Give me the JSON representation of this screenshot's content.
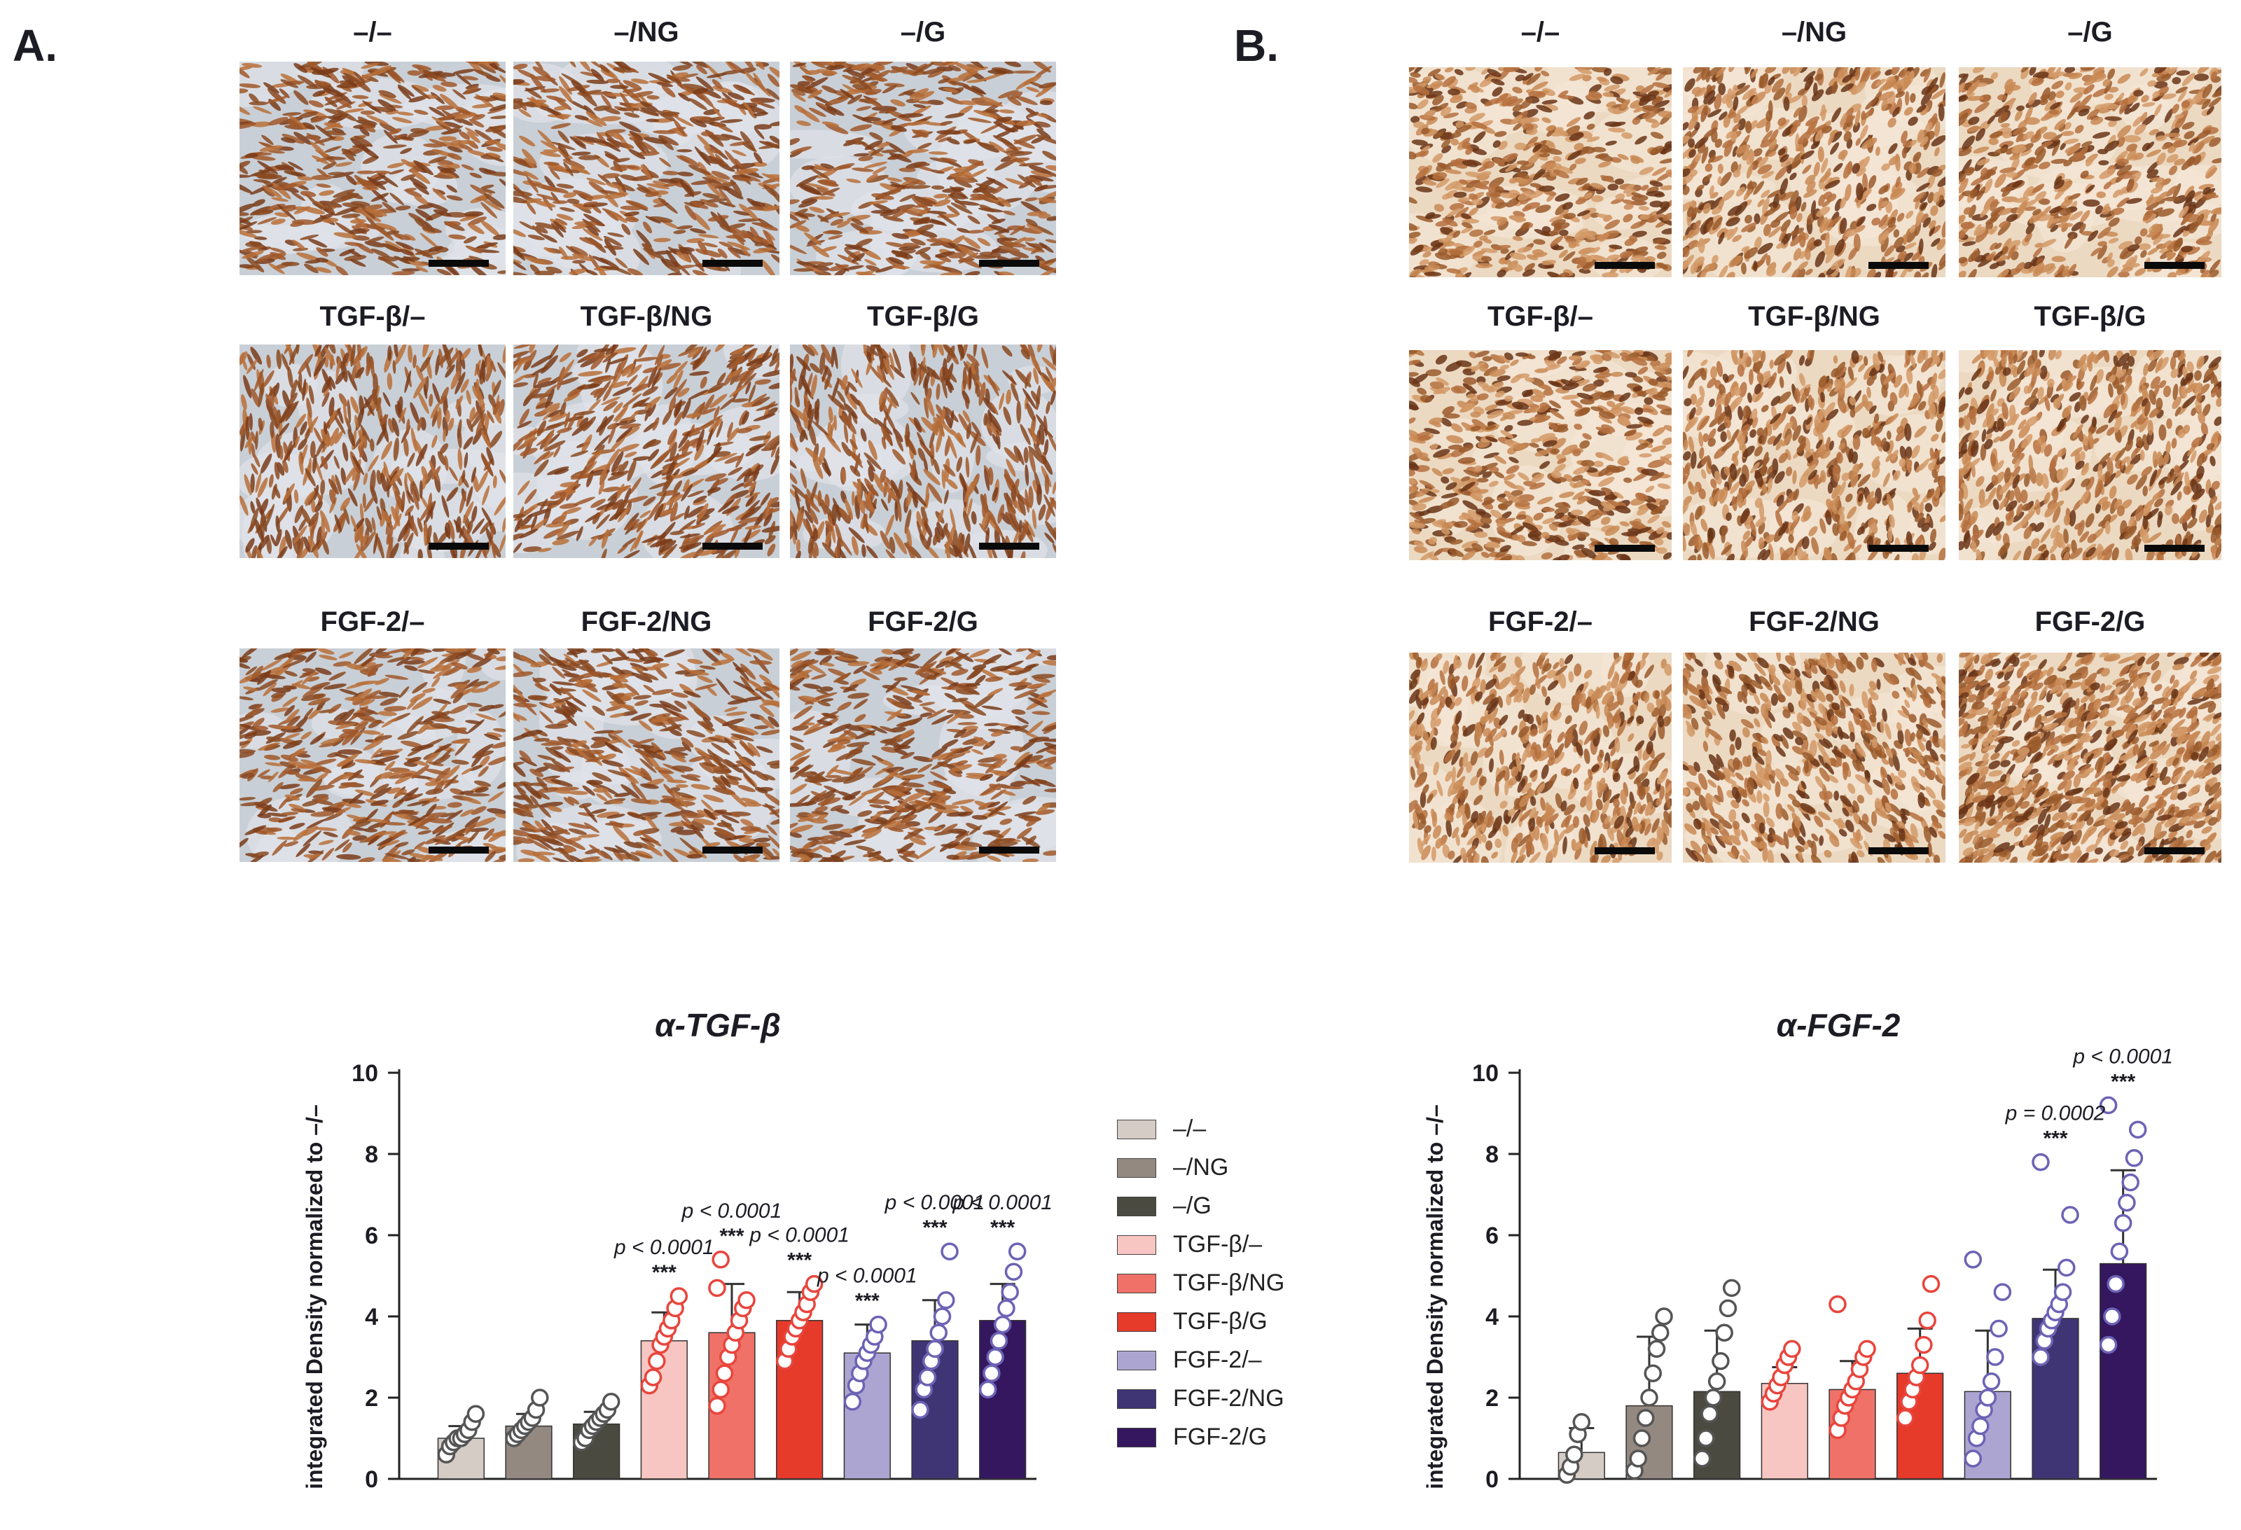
{
  "panels": [
    {
      "id": "A",
      "label": "A.",
      "stain": "blue",
      "rows": [
        [
          "–/–",
          "–/NG",
          "–/G"
        ],
        [
          "TGF-β/–",
          "TGF-β/NG",
          "TGF-β/G"
        ],
        [
          "FGF-2/–",
          "FGF-2/NG",
          "FGF-2/G"
        ]
      ]
    },
    {
      "id": "B",
      "label": "B.",
      "stain": "warm",
      "rows": [
        [
          "–/–",
          "–/NG",
          "–/G"
        ],
        [
          "TGF-β/–",
          "TGF-β/NG",
          "TGF-β/G"
        ],
        [
          "FGF-2/–",
          "FGF-2/NG",
          "FGF-2/G"
        ]
      ]
    }
  ],
  "legend": {
    "items": [
      {
        "label": "–/–",
        "color": "#d5ccc6"
      },
      {
        "label": "–/NG",
        "color": "#948981"
      },
      {
        "label": "–/G",
        "color": "#4a4a40"
      },
      {
        "label": "TGF-β/–",
        "color": "#f8c6c2"
      },
      {
        "label": "TGF-β/NG",
        "color": "#ef7168"
      },
      {
        "label": "TGF-β/G",
        "color": "#e63a2a"
      },
      {
        "label": "FGF-2/–",
        "color": "#ada5d1"
      },
      {
        "label": "FGF-2/NG",
        "color": "#3f3575"
      },
      {
        "label": "FGF-2/G",
        "color": "#34175f"
      }
    ]
  },
  "chart_data": [
    {
      "type": "bar",
      "title": "α-TGF-β",
      "ylabel": "integrated Density normalized to –/–",
      "xlabel": "",
      "ylim": [
        0,
        10
      ],
      "yticks": [
        0,
        2,
        4,
        6,
        8,
        10
      ],
      "categories": [
        "–/–",
        "–/NG",
        "–/G",
        "TGF-β/–",
        "TGF-β/NG",
        "TGF-β/G",
        "FGF-2/–",
        "FGF-2/NG",
        "FGF-2/G"
      ],
      "values": [
        1.0,
        1.3,
        1.35,
        3.4,
        3.6,
        3.9,
        3.1,
        3.4,
        3.9
      ],
      "errors": [
        0.3,
        0.3,
        0.3,
        0.7,
        1.2,
        0.7,
        0.7,
        1.0,
        0.9
      ],
      "colors": [
        "#d5ccc6",
        "#948981",
        "#4a4a40",
        "#f8c6c2",
        "#ef7168",
        "#e63a2a",
        "#ada5d1",
        "#3f3575",
        "#34175f"
      ],
      "point_colors": [
        "#555555",
        "#555555",
        "#555555",
        "#e8453c",
        "#e8453c",
        "#e8453c",
        "#6c63b5",
        "#6c63b5",
        "#6c63b5"
      ],
      "points": [
        [
          0.6,
          0.8,
          0.9,
          1.0,
          1.0,
          1.1,
          1.2,
          1.4,
          1.6
        ],
        [
          1.0,
          1.1,
          1.2,
          1.3,
          1.4,
          1.5,
          1.7,
          2.0
        ],
        [
          0.9,
          1.0,
          1.2,
          1.3,
          1.4,
          1.5,
          1.6,
          1.7,
          1.9
        ],
        [
          2.3,
          2.5,
          2.9,
          3.3,
          3.5,
          3.7,
          3.9,
          4.2,
          4.5
        ],
        [
          1.8,
          2.2,
          2.6,
          3.0,
          3.3,
          3.6,
          3.9,
          4.2,
          4.4,
          4.7,
          5.4
        ],
        [
          2.9,
          3.2,
          3.5,
          3.7,
          3.9,
          4.1,
          4.3,
          4.6,
          4.8
        ],
        [
          1.9,
          2.3,
          2.6,
          2.9,
          3.1,
          3.3,
          3.5,
          3.8
        ],
        [
          1.7,
          2.2,
          2.5,
          2.9,
          3.2,
          3.6,
          4.0,
          4.4,
          5.6
        ],
        [
          2.2,
          2.6,
          3.0,
          3.4,
          3.8,
          4.2,
          4.6,
          5.1,
          5.6
        ]
      ],
      "annotations": [
        {
          "index": 3,
          "text": "p < 0.0001",
          "stars": "***"
        },
        {
          "index": 4,
          "text": "p < 0.0001",
          "stars": "***"
        },
        {
          "index": 5,
          "text": "p < 0.0001",
          "stars": "***"
        },
        {
          "index": 6,
          "text": "p < 0.0001",
          "stars": "***"
        },
        {
          "index": 7,
          "text": "p < 0.0001",
          "stars": "***"
        },
        {
          "index": 8,
          "text": "p < 0.0001",
          "stars": "***"
        }
      ]
    },
    {
      "type": "bar",
      "title": "α-FGF-2",
      "ylabel": "integrated Density normalized to –/–",
      "xlabel": "",
      "ylim": [
        0,
        10
      ],
      "yticks": [
        0,
        2,
        4,
        6,
        8,
        10
      ],
      "categories": [
        "–/–",
        "–/NG",
        "–/G",
        "TGF-β/–",
        "TGF-β/NG",
        "TGF-β/G",
        "FGF-2/–",
        "FGF-2/NG",
        "FGF-2/G"
      ],
      "values": [
        0.65,
        1.8,
        2.15,
        2.35,
        2.2,
        2.6,
        2.15,
        3.95,
        5.3
      ],
      "errors": [
        0.6,
        1.7,
        1.5,
        0.4,
        0.7,
        1.1,
        1.5,
        1.2,
        2.3
      ],
      "colors": [
        "#d5ccc6",
        "#948981",
        "#4a4a40",
        "#f8c6c2",
        "#ef7168",
        "#e63a2a",
        "#ada5d1",
        "#3f3575",
        "#34175f"
      ],
      "point_colors": [
        "#555555",
        "#555555",
        "#555555",
        "#e8453c",
        "#e8453c",
        "#e8453c",
        "#6c63b5",
        "#6c63b5",
        "#6c63b5"
      ],
      "points": [
        [
          0.1,
          0.3,
          0.6,
          1.1,
          1.4
        ],
        [
          0.2,
          0.5,
          1.0,
          1.5,
          2.0,
          2.6,
          3.2,
          3.6,
          4.0
        ],
        [
          0.5,
          1.0,
          1.6,
          2.0,
          2.4,
          2.9,
          3.6,
          4.2,
          4.7
        ],
        [
          1.9,
          2.1,
          2.3,
          2.5,
          2.8,
          3.0,
          3.2
        ],
        [
          1.2,
          1.5,
          1.8,
          2.0,
          2.2,
          2.4,
          2.7,
          3.0,
          3.2,
          4.3
        ],
        [
          1.5,
          1.9,
          2.2,
          2.5,
          2.8,
          3.3,
          3.9,
          4.8
        ],
        [
          0.5,
          1.0,
          1.3,
          1.7,
          2.0,
          2.4,
          3.0,
          3.7,
          4.6,
          5.4
        ],
        [
          3.0,
          3.4,
          3.7,
          3.9,
          4.1,
          4.3,
          4.6,
          5.2,
          6.5,
          7.8
        ],
        [
          3.3,
          4.0,
          4.8,
          5.6,
          6.3,
          6.8,
          7.3,
          7.9,
          8.6,
          9.2
        ]
      ],
      "annotations": [
        {
          "index": 7,
          "text": "p = 0.0002",
          "stars": "***"
        },
        {
          "index": 8,
          "text": "p < 0.0001",
          "stars": "***"
        }
      ]
    }
  ]
}
